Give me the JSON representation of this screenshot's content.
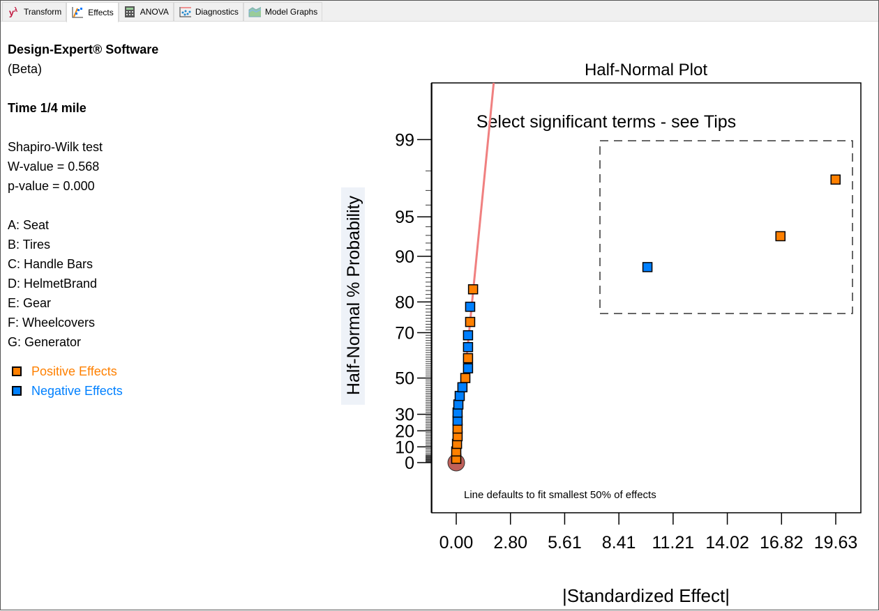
{
  "tabs": [
    {
      "label": "Transform",
      "icon": "transform-icon"
    },
    {
      "label": "Effects",
      "icon": "effects-icon",
      "active": true
    },
    {
      "label": "ANOVA",
      "icon": "calculator-icon"
    },
    {
      "label": "Diagnostics",
      "icon": "diagnostics-icon"
    },
    {
      "label": "Model Graphs",
      "icon": "model-graphs-icon"
    }
  ],
  "info": {
    "software": "Design-Expert® Software",
    "beta": "(Beta)",
    "response": "Time 1/4 mile",
    "test": "Shapiro-Wilk test",
    "w_value": "W-value = 0.568",
    "p_value": "p-value = 0.000",
    "factors": [
      "A: Seat",
      "B: Tires",
      "C: Handle Bars",
      "D: HelmetBrand",
      "E: Gear",
      "F: Wheelcovers",
      "G: Generator"
    ],
    "legend": [
      {
        "label": "Positive Effects",
        "color": "#ff8000"
      },
      {
        "label": "Negative Effects",
        "color": "#0080ff"
      }
    ]
  },
  "chart_data": {
    "type": "scatter",
    "title": "Half-Normal Plot",
    "xlabel": "|Standardized Effect|",
    "ylabel": "Half-Normal % Probability",
    "instruction": "Select significant terms - see Tips",
    "note": "Line defaults to fit smallest 50% of effects",
    "xlim": [
      0,
      19.63
    ],
    "xticks": [
      "0.00",
      "2.80",
      "5.61",
      "8.41",
      "11.21",
      "14.02",
      "16.82",
      "19.63"
    ],
    "yticks": [
      0,
      10,
      20,
      30,
      50,
      70,
      80,
      90,
      95,
      99
    ],
    "colors": {
      "positive": "#ff8000",
      "negative": "#0080ff",
      "line": "#f08080",
      "origin": "#c0605a"
    },
    "points": [
      {
        "x": 0.0,
        "p": 2.4,
        "sign": "positive"
      },
      {
        "x": 0.0,
        "p": 7.1,
        "sign": "positive"
      },
      {
        "x": 0.04,
        "p": 11.9,
        "sign": "positive"
      },
      {
        "x": 0.07,
        "p": 16.7,
        "sign": "positive"
      },
      {
        "x": 0.07,
        "p": 21.4,
        "sign": "positive"
      },
      {
        "x": 0.07,
        "p": 26.2,
        "sign": "negative"
      },
      {
        "x": 0.07,
        "p": 31.0,
        "sign": "negative"
      },
      {
        "x": 0.11,
        "p": 35.7,
        "sign": "negative"
      },
      {
        "x": 0.18,
        "p": 40.5,
        "sign": "negative"
      },
      {
        "x": 0.32,
        "p": 45.2,
        "sign": "negative"
      },
      {
        "x": 0.47,
        "p": 50.0,
        "sign": "positive"
      },
      {
        "x": 0.61,
        "p": 54.8,
        "sign": "negative"
      },
      {
        "x": 0.61,
        "p": 59.5,
        "sign": "positive"
      },
      {
        "x": 0.61,
        "p": 64.3,
        "sign": "negative"
      },
      {
        "x": 0.61,
        "p": 69.0,
        "sign": "negative"
      },
      {
        "x": 0.72,
        "p": 73.8,
        "sign": "positive"
      },
      {
        "x": 0.72,
        "p": 78.6,
        "sign": "negative"
      },
      {
        "x": 0.87,
        "p": 83.3,
        "sign": "positive"
      },
      {
        "x": 9.89,
        "p": 88.1,
        "sign": "negative"
      },
      {
        "x": 16.77,
        "p": 92.9,
        "sign": "positive"
      },
      {
        "x": 19.62,
        "p": 97.6,
        "sign": "positive"
      }
    ],
    "fit_line_slope": 0.64
  }
}
